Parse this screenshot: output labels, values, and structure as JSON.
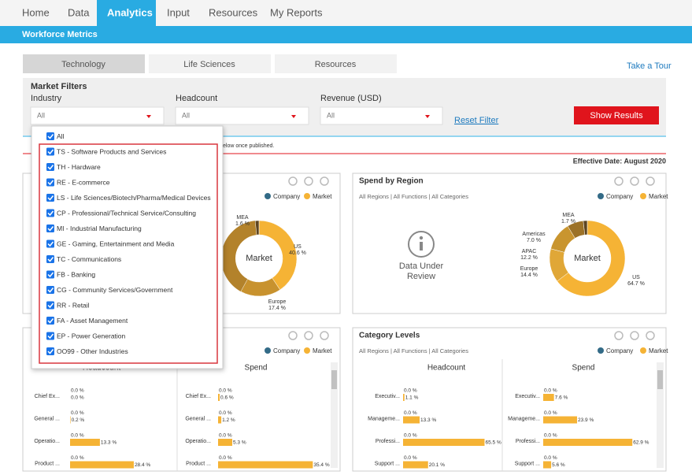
{
  "nav": {
    "items": [
      "Home",
      "Data",
      "Analytics",
      "Input",
      "Resources",
      "My Reports"
    ],
    "active": 2
  },
  "subheader": "Workforce Metrics",
  "tabs": {
    "items": [
      "Technology",
      "Life Sciences",
      "Resources"
    ],
    "active": 0
  },
  "tour_link": "Take a Tour",
  "filters": {
    "title": "Market Filters",
    "fields": [
      {
        "label": "Industry",
        "value": "All"
      },
      {
        "label": "Headcount",
        "value": "All"
      },
      {
        "label": "Revenue (USD)",
        "value": "All"
      }
    ],
    "reset": "Reset Filter",
    "submit": "Show Results"
  },
  "notice": "elow once published.",
  "effective_date": "Effective Date: August 2020",
  "dropdown": [
    "All",
    "TS - Software Products and Services",
    "TH - Hardware",
    "RE - E-commerce",
    "LS - Life Sciences/Biotech/Pharma/Medical Devices",
    "CP - Professional/Technical Service/Consulting",
    "MI - Industrial Manufacturing",
    "GE - Gaming, Entertainment and Media",
    "TC - Communications",
    "FB - Banking",
    "CG - Community Services/Government",
    "RR - Retail",
    "FA - Asset Management",
    "EP - Power Generation",
    "OO99 - Other Industries"
  ],
  "panels": [
    {
      "legend": {
        "names": [
          "Company",
          "Market"
        ],
        "colors": [
          "#336b87",
          "#f5b335"
        ]
      },
      "donut": {
        "center": "Market",
        "names": [
          "US",
          "Europe",
          "MEA"
        ],
        "values": [
          40.6,
          17.4,
          1.6
        ],
        "value_labels": [
          "40.6 %",
          "17.4 %",
          "1.6 %"
        ],
        "colors": [
          "#f5b335",
          "#c8922e",
          "#5e4520"
        ]
      }
    },
    {
      "title": "Spend by Region",
      "subtitle": "All Regions | All Functions | All Categories",
      "legend": {
        "names": [
          "Company",
          "Market"
        ],
        "colors": [
          "#336b87",
          "#f5b335"
        ]
      },
      "message": "Data Under Review",
      "donut": {
        "center": "Market",
        "names": [
          "US",
          "Europe",
          "APAC",
          "Americas",
          "MEA"
        ],
        "values": [
          64.7,
          14.4,
          12.2,
          7.0,
          1.7
        ],
        "value_labels": [
          "64.7 %",
          "14.4 %",
          "12.2 %",
          "7.0 %",
          "1.7 %"
        ],
        "colors": [
          "#f5b335",
          "#e0a737",
          "#c9952f",
          "#9c7228",
          "#5e4520"
        ]
      }
    },
    {
      "legend": {
        "names": [
          "Company",
          "Market"
        ],
        "colors": [
          "#336b87",
          "#f5b335"
        ]
      },
      "columns": [
        {
          "title": "Headcount",
          "categories": [
            "Chief Ex...",
            "General ...",
            "Operatio...",
            "Product ..."
          ],
          "series": [
            {
              "name": "Company",
              "values": [
                0,
                0,
                0,
                0
              ],
              "value_labels": [
                "0.0 %",
                "0.0 %",
                "0.0 %",
                "0.0 %"
              ]
            },
            {
              "name": "Market",
              "values": [
                0,
                0.2,
                13.3,
                28.4
              ],
              "value_labels": [
                "0.0 %",
                "0.2 %",
                "13.3 %",
                "28.4 %"
              ]
            }
          ]
        },
        {
          "title": "Spend",
          "categories": [
            "Chief Ex...",
            "General ...",
            "Operatio...",
            "Product ..."
          ],
          "series": [
            {
              "name": "Company",
              "values": [
                0,
                0,
                0,
                0
              ],
              "value_labels": [
                "0.0 %",
                "0.0 %",
                "0.0 %",
                "0.0 %"
              ]
            },
            {
              "name": "Market",
              "values": [
                0.6,
                1.2,
                5.3,
                35.4
              ],
              "value_labels": [
                "0.6 %",
                "1.2 %",
                "5.3 %",
                "35.4 %"
              ]
            }
          ]
        }
      ]
    },
    {
      "title": "Category Levels",
      "subtitle": "All Regions | All Functions | All Categories",
      "legend": {
        "names": [
          "Company",
          "Market"
        ],
        "colors": [
          "#336b87",
          "#f5b335"
        ]
      },
      "columns": [
        {
          "title": "Headcount",
          "categories": [
            "Executiv...",
            "Manageme...",
            "Professi...",
            "Support ..."
          ],
          "series": [
            {
              "name": "Company",
              "values": [
                0,
                0,
                0,
                0
              ],
              "value_labels": [
                "0.0 %",
                "0.0 %",
                "0.0 %",
                "0.0 %"
              ]
            },
            {
              "name": "Market",
              "values": [
                1.1,
                13.3,
                65.5,
                20.1
              ],
              "value_labels": [
                "1.1 %",
                "13.3 %",
                "65.5 %",
                "20.1 %"
              ]
            }
          ]
        },
        {
          "title": "Spend",
          "categories": [
            "Executiv...",
            "Manageme...",
            "Professi...",
            "Support ..."
          ],
          "series": [
            {
              "name": "Company",
              "values": [
                0,
                0,
                0,
                0
              ],
              "value_labels": [
                "0.0 %",
                "0.0 %",
                "0.0 %",
                "0.0 %"
              ]
            },
            {
              "name": "Market",
              "values": [
                7.6,
                23.9,
                62.9,
                5.6
              ],
              "value_labels": [
                "7.6 %",
                "23.9 %",
                "62.9 %",
                "5.6 %"
              ]
            }
          ]
        }
      ]
    }
  ]
}
